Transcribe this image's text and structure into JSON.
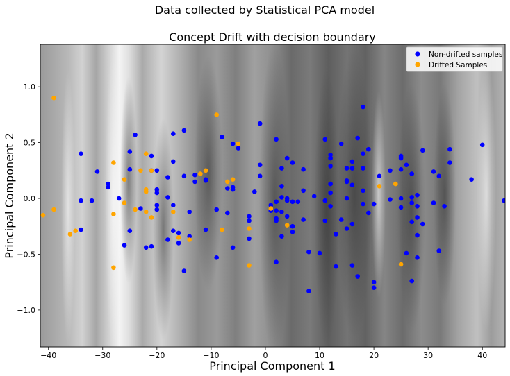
{
  "figure": {
    "suptitle": "Data collected by Statistical PCA model"
  },
  "chart_data": {
    "type": "scatter",
    "title": "Concept Drift with decision boundary",
    "xlabel": "Principal Component 1",
    "ylabel": "Principal Component 2",
    "xlim": [
      -41.5,
      44.2
    ],
    "ylim": [
      -1.33,
      1.38
    ],
    "xticks": [
      -40,
      -30,
      -20,
      -10,
      0,
      10,
      20,
      30,
      40
    ],
    "yticks": [
      -1.0,
      -0.5,
      0.0,
      0.5,
      1.0
    ],
    "xtick_labels": [
      "−40",
      "−30",
      "−20",
      "−10",
      "0",
      "10",
      "20",
      "30",
      "40"
    ],
    "ytick_labels": [
      "−1.0",
      "−0.5",
      "0.0",
      "0.5",
      "1.0"
    ],
    "background": "grayscale filled contour of decision boundary",
    "legend": {
      "placement": "top-right"
    },
    "series": [
      {
        "name": "Non-drifted samples",
        "color": "#0000ff",
        "points": [
          [
            -34,
            0.4
          ],
          [
            -34,
            -0.02
          ],
          [
            -34,
            -0.28
          ],
          [
            -32,
            -0.02
          ],
          [
            -31,
            0.24
          ],
          [
            -29,
            0.13
          ],
          [
            -29,
            0.1
          ],
          [
            -27,
            0.0
          ],
          [
            -26,
            -0.42
          ],
          [
            -25,
            0.42
          ],
          [
            -25,
            0.26
          ],
          [
            -25,
            -0.29
          ],
          [
            -24,
            0.57
          ],
          [
            -23,
            -0.09
          ],
          [
            -22,
            -0.44
          ],
          [
            -21,
            0.38
          ],
          [
            -21,
            0.25
          ],
          [
            -21,
            -0.43
          ],
          [
            -20,
            0.25
          ],
          [
            -20,
            0.08
          ],
          [
            -20,
            0.05
          ],
          [
            -20,
            -0.06
          ],
          [
            -20,
            -0.1
          ],
          [
            -18,
            0.19
          ],
          [
            -18,
            0.01
          ],
          [
            -18,
            -0.37
          ],
          [
            -17,
            0.58
          ],
          [
            -17,
            0.33
          ],
          [
            -17,
            -0.06
          ],
          [
            -17,
            -0.29
          ],
          [
            -16,
            -0.31
          ],
          [
            -16,
            -0.4
          ],
          [
            -15,
            0.61
          ],
          [
            -15,
            0.2
          ],
          [
            -15,
            -0.65
          ],
          [
            -14,
            -0.12
          ],
          [
            -14,
            -0.34
          ],
          [
            -13,
            0.21
          ],
          [
            -13,
            0.15
          ],
          [
            -11,
            0.17
          ],
          [
            -11,
            0.16
          ],
          [
            -11,
            -0.28
          ],
          [
            -9,
            -0.1
          ],
          [
            -9,
            -0.53
          ],
          [
            -8,
            0.55
          ],
          [
            -7,
            0.09
          ],
          [
            -7,
            -0.13
          ],
          [
            -6,
            0.49
          ],
          [
            -6,
            0.1
          ],
          [
            -6,
            0.08
          ],
          [
            -6,
            -0.44
          ],
          [
            -5,
            0.45
          ],
          [
            -3,
            -0.16
          ],
          [
            -3,
            -0.2
          ],
          [
            -3,
            -0.36
          ],
          [
            -2,
            0.06
          ],
          [
            -1,
            0.67
          ],
          [
            -1,
            0.3
          ],
          [
            -1,
            0.2
          ],
          [
            1,
            -0.06
          ],
          [
            1,
            -0.11
          ],
          [
            2,
            0.53
          ],
          [
            2,
            -0.03
          ],
          [
            2,
            -0.11
          ],
          [
            2,
            -0.18
          ],
          [
            2,
            -0.2
          ],
          [
            2,
            -0.57
          ],
          [
            3,
            0.27
          ],
          [
            3,
            0.11
          ],
          [
            3,
            0.01
          ],
          [
            3,
            -0.12
          ],
          [
            3,
            -0.34
          ],
          [
            4,
            0.36
          ],
          [
            4,
            0.0
          ],
          [
            4,
            -0.02
          ],
          [
            4,
            -0.16
          ],
          [
            5,
            0.32
          ],
          [
            5,
            -0.03
          ],
          [
            5,
            -0.25
          ],
          [
            5,
            -0.3
          ],
          [
            6,
            -0.03
          ],
          [
            7,
            0.26
          ],
          [
            7,
            0.07
          ],
          [
            7,
            -0.19
          ],
          [
            8,
            -0.48
          ],
          [
            8,
            -0.83
          ],
          [
            9,
            0.02
          ],
          [
            10,
            -0.49
          ],
          [
            11,
            0.53
          ],
          [
            11,
            -0.02
          ],
          [
            11,
            -0.2
          ],
          [
            12,
            0.39
          ],
          [
            12,
            0.36
          ],
          [
            12,
            0.29
          ],
          [
            12,
            0.13
          ],
          [
            12,
            0.05
          ],
          [
            12,
            -0.07
          ],
          [
            13,
            -0.32
          ],
          [
            13,
            -0.61
          ],
          [
            14,
            0.49
          ],
          [
            14,
            -0.19
          ],
          [
            15,
            0.27
          ],
          [
            15,
            0.16
          ],
          [
            15,
            0.15
          ],
          [
            15,
            0.0
          ],
          [
            15,
            -0.27
          ],
          [
            16,
            0.33
          ],
          [
            16,
            0.27
          ],
          [
            16,
            0.12
          ],
          [
            16,
            -0.23
          ],
          [
            16,
            -0.6
          ],
          [
            17,
            0.54
          ],
          [
            17,
            -0.7
          ],
          [
            18,
            0.82
          ],
          [
            18,
            0.4
          ],
          [
            18,
            0.27
          ],
          [
            18,
            0.07
          ],
          [
            18,
            -0.05
          ],
          [
            19,
            0.44
          ],
          [
            19,
            -0.13
          ],
          [
            20,
            -0.05
          ],
          [
            20,
            -0.75
          ],
          [
            20,
            -0.8
          ],
          [
            21,
            0.2
          ],
          [
            23,
            0.25
          ],
          [
            23,
            -0.01
          ],
          [
            25,
            0.38
          ],
          [
            25,
            0.36
          ],
          [
            25,
            0.26
          ],
          [
            25,
            0.0
          ],
          [
            25,
            -0.08
          ],
          [
            26,
            0.3
          ],
          [
            26,
            -0.49
          ],
          [
            27,
            0.22
          ],
          [
            27,
            0.01
          ],
          [
            27,
            -0.04
          ],
          [
            27,
            -0.21
          ],
          [
            27,
            -0.74
          ],
          [
            28,
            0.03
          ],
          [
            28,
            -0.07
          ],
          [
            28,
            -0.17
          ],
          [
            28,
            -0.33
          ],
          [
            28,
            -0.53
          ],
          [
            29,
            0.43
          ],
          [
            29,
            -0.23
          ],
          [
            31,
            0.24
          ],
          [
            31,
            -0.04
          ],
          [
            32,
            0.2
          ],
          [
            32,
            -0.47
          ],
          [
            33,
            -0.07
          ],
          [
            34,
            0.44
          ],
          [
            34,
            0.32
          ],
          [
            38,
            0.17
          ],
          [
            40,
            0.48
          ],
          [
            44,
            -0.02
          ]
        ]
      },
      {
        "name": "Drifted Samples",
        "color": "#ffa500",
        "points": [
          [
            -41,
            -0.15
          ],
          [
            -39,
            0.9
          ],
          [
            -39,
            -0.1
          ],
          [
            -36,
            -0.32
          ],
          [
            -35,
            -0.29
          ],
          [
            -28,
            0.32
          ],
          [
            -28,
            -0.14
          ],
          [
            -28,
            -0.62
          ],
          [
            -26,
            0.17
          ],
          [
            -26,
            -0.04
          ],
          [
            -24,
            -0.1
          ],
          [
            -23,
            0.25
          ],
          [
            -22,
            0.4
          ],
          [
            -22,
            0.08
          ],
          [
            -22,
            0.06
          ],
          [
            -22,
            -0.12
          ],
          [
            -21,
            0.25
          ],
          [
            -21,
            -0.17
          ],
          [
            -17,
            -0.12
          ],
          [
            -16,
            -0.35
          ],
          [
            -14,
            -0.37
          ],
          [
            -12,
            0.22
          ],
          [
            -11,
            0.25
          ],
          [
            -9,
            0.75
          ],
          [
            -8,
            -0.28
          ],
          [
            -7,
            0.15
          ],
          [
            -6,
            0.17
          ],
          [
            -5,
            0.49
          ],
          [
            -3,
            -0.27
          ],
          [
            -3,
            -0.6
          ],
          [
            1,
            -0.09
          ],
          [
            4,
            -0.24
          ],
          [
            21,
            0.11
          ],
          [
            24,
            0.13
          ],
          [
            25,
            -0.59
          ]
        ]
      }
    ]
  }
}
